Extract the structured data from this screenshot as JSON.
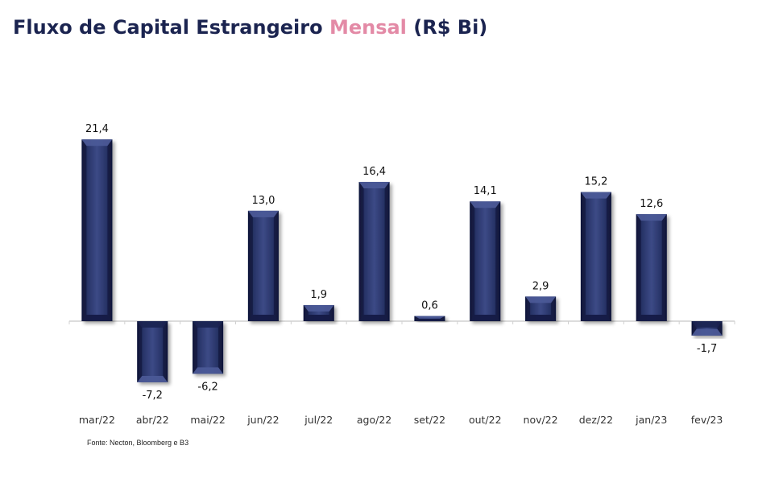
{
  "title": {
    "prefix": "Fluxo de Capital Estrangeiro",
    "accent": "Mensal",
    "suffix": "(R$ Bi)"
  },
  "source": "Fonte: Necton, Bloomberg e B3",
  "colors": {
    "title": "#1b2450",
    "accent": "#e38aa6",
    "bar_dark": "#121a40",
    "bar_mid": "#283468",
    "bar_light": "#3c4a86",
    "axis": "#d0d0d0"
  },
  "chart_data": {
    "type": "bar",
    "title": "Fluxo de Capital Estrangeiro Mensal (R$ Bi)",
    "xlabel": "",
    "ylabel": "",
    "categories": [
      "mar/22",
      "abr/22",
      "mai/22",
      "jun/22",
      "jul/22",
      "ago/22",
      "set/22",
      "out/22",
      "nov/22",
      "dez/22",
      "jan/23",
      "fev/23"
    ],
    "values": [
      21.4,
      -7.2,
      -6.2,
      13.0,
      1.9,
      16.4,
      0.6,
      14.1,
      2.9,
      15.2,
      12.6,
      -1.7
    ],
    "value_labels": [
      "21,4",
      "-7,2",
      "-6,2",
      "13,0",
      "1,9",
      "16,4",
      "0,6",
      "14,1",
      "2,9",
      "15,2",
      "12,6",
      "-1,7"
    ],
    "grid": false,
    "legend": "none"
  }
}
